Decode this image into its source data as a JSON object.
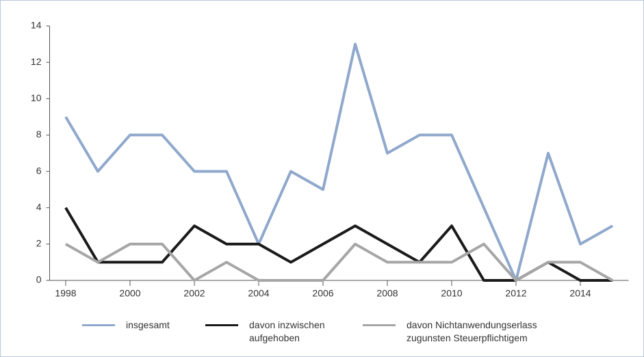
{
  "chart_data": {
    "type": "line",
    "x": [
      1998,
      1999,
      2000,
      2001,
      2002,
      2003,
      2004,
      2005,
      2006,
      2007,
      2008,
      2009,
      2010,
      2011,
      2012,
      2013,
      2014,
      2015
    ],
    "series": [
      {
        "name": "insgesamt",
        "color": "#8fa8cc",
        "values": [
          9,
          6,
          8,
          8,
          6,
          6,
          2,
          6,
          5,
          13,
          7,
          8,
          8,
          4,
          0,
          7,
          2,
          3
        ]
      },
      {
        "name": "davon inzwischen aufgehoben",
        "color": "#1a1a1a",
        "values": [
          4,
          1,
          1,
          1,
          3,
          2,
          2,
          1,
          2,
          3,
          2,
          1,
          3,
          0,
          0,
          1,
          0,
          0
        ]
      },
      {
        "name": "davon Nichtanwendungserlass zugunsten Steuerpflichtigem",
        "color": "#a6a6a6",
        "values": [
          2,
          1,
          2,
          2,
          0,
          1,
          0,
          0,
          0,
          2,
          1,
          1,
          1,
          2,
          0,
          1,
          1,
          0
        ]
      }
    ],
    "xlim": [
      1997.5,
      2015.5
    ],
    "xticks": [
      1998,
      2000,
      2002,
      2004,
      2006,
      2008,
      2010,
      2012,
      2014
    ],
    "ylim": [
      0,
      14
    ],
    "yticks": [
      0,
      2,
      4,
      6,
      8,
      10,
      12,
      14
    ],
    "grid": false
  }
}
